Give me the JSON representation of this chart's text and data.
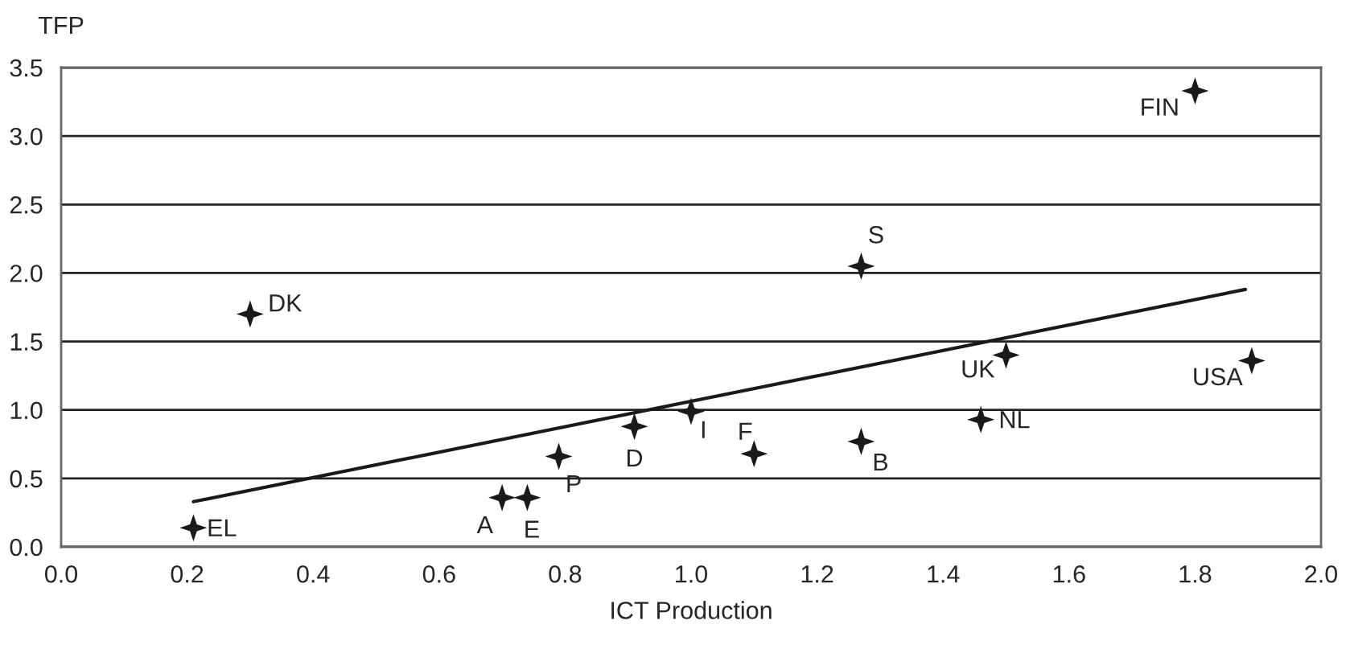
{
  "chart_data": {
    "type": "scatter",
    "xlabel": "ICT Production",
    "ylabel": "TFP",
    "xlim": [
      0.0,
      2.0
    ],
    "ylim": [
      0.0,
      3.5
    ],
    "xticks": [
      {
        "value": 0,
        "label": "0.0"
      },
      0.2,
      0.4,
      0.6,
      0.8,
      {
        "value": 1,
        "label": "1.0"
      },
      1.2,
      1.4,
      1.6,
      1.8,
      {
        "value": 2,
        "label": "2.0"
      }
    ],
    "yticks": [
      {
        "value": 0,
        "label": "0.0"
      },
      0.5,
      {
        "value": 1,
        "label": "1.0"
      },
      1.5,
      {
        "value": 2,
        "label": "2.0"
      },
      2.5,
      {
        "value": 3,
        "label": "3.0"
      },
      3.5
    ],
    "grid": "y",
    "series": [
      {
        "marker": "star",
        "color": "#1a1a1a",
        "x": [
          0.21,
          0.3,
          0.7,
          0.74,
          0.79,
          0.91,
          1.0,
          1.1,
          1.27,
          1.27,
          1.46,
          1.5,
          1.89,
          1.8
        ],
        "values": [
          0.14,
          1.7,
          0.36,
          0.36,
          0.66,
          0.88,
          0.99,
          0.68,
          0.77,
          2.05,
          0.93,
          1.4,
          1.36,
          3.33
        ]
      },
      {
        "type": "line",
        "marker": "none",
        "color": "#1a1a1a",
        "x": [
          0.21,
          1.88
        ],
        "values": [
          0.33,
          1.88
        ]
      }
    ],
    "annotations": [
      {
        "text": "EL",
        "x": 0.21,
        "y": 0.14
      },
      {
        "text": "DK",
        "x": 0.3,
        "y": 1.7
      },
      {
        "text": "A",
        "x": 0.7,
        "y": 0.36
      },
      {
        "text": "E",
        "x": 0.74,
        "y": 0.36
      },
      {
        "text": "P",
        "x": 0.79,
        "y": 0.66
      },
      {
        "text": "D",
        "x": 0.91,
        "y": 0.88
      },
      {
        "text": "I",
        "x": 1.0,
        "y": 0.99
      },
      {
        "text": "F",
        "x": 1.1,
        "y": 0.68
      },
      {
        "text": "B",
        "x": 1.27,
        "y": 0.77
      },
      {
        "text": "S",
        "x": 1.27,
        "y": 2.05
      },
      {
        "text": "NL",
        "x": 1.46,
        "y": 0.93
      },
      {
        "text": "UK",
        "x": 1.5,
        "y": 1.4
      },
      {
        "text": "USA",
        "x": 1.89,
        "y": 1.36
      },
      {
        "text": "FIN",
        "x": 1.8,
        "y": 3.33
      }
    ]
  }
}
